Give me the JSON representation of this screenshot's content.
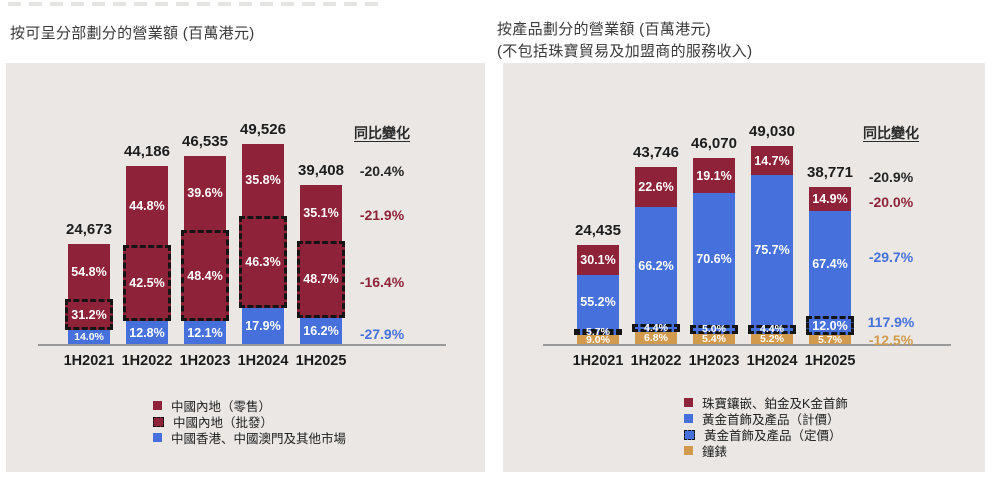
{
  "colors": {
    "red": "#8E2238",
    "blue": "#4671DC",
    "gold": "#D29A4C",
    "black": "#262626",
    "panel_bg": "#EAE7E4",
    "axis": "#9A9A9A"
  },
  "chart_data": [
    {
      "type": "bar",
      "stacked": true,
      "title_lines": [
        "按可呈分部劃分的營業額 (百萬港元)"
      ],
      "unit": "百萬港元",
      "yoy_header": "同比變化",
      "categories": [
        "1H2021",
        "1H2022",
        "1H2023",
        "1H2024",
        "1H2025"
      ],
      "totals_display": [
        "24,673",
        "44,186",
        "46,535",
        "49,526",
        "39,408"
      ],
      "series": [
        {
          "name": "中國內地（零售）",
          "style": "solid-red",
          "values": [
            54.8,
            44.8,
            39.6,
            35.8,
            35.1
          ]
        },
        {
          "name": "中國內地（批發）",
          "style": "dashed-red",
          "values": [
            31.2,
            42.5,
            48.4,
            46.3,
            48.7
          ]
        },
        {
          "name": "中國香港、中國澳門及其他市場",
          "style": "solid-blue",
          "values": [
            14.0,
            12.8,
            12.1,
            17.9,
            16.2
          ]
        }
      ],
      "yoy": [
        {
          "label": "-20.4%",
          "color": "black"
        },
        {
          "label": "-21.9%",
          "color": "red"
        },
        {
          "label": "-16.4%",
          "color": "red"
        },
        {
          "label": "-27.9%",
          "color": "blue"
        }
      ]
    },
    {
      "type": "bar",
      "stacked": true,
      "title_lines": [
        "按產品劃分的營業額 (百萬港元)",
        "(不包括珠寶貿易及加盟商的服務收入)"
      ],
      "unit": "百萬港元",
      "yoy_header": "同比變化",
      "categories": [
        "1H2021",
        "1H2022",
        "1H2023",
        "1H2024",
        "1H2025"
      ],
      "totals_display": [
        "24,435",
        "43,746",
        "46,070",
        "49,030",
        "38,771"
      ],
      "series": [
        {
          "name": "珠寶鑲嵌、鉑金及K金首飾",
          "style": "solid-red",
          "values": [
            30.1,
            22.6,
            19.1,
            14.7,
            14.9
          ]
        },
        {
          "name": "黃金首飾及產品（計價）",
          "style": "solid-blue",
          "values": [
            55.2,
            66.2,
            70.6,
            75.7,
            67.4
          ]
        },
        {
          "name": "黃金首飾及產品（定價）",
          "style": "dashed-blue",
          "values": [
            5.7,
            4.4,
            5.0,
            4.4,
            12.0
          ]
        },
        {
          "name": "鐘錶",
          "style": "solid-gold",
          "values": [
            9.0,
            6.8,
            5.4,
            5.2,
            5.7
          ]
        }
      ],
      "yoy": [
        {
          "label": "-20.9%",
          "color": "black"
        },
        {
          "label": "-20.0%",
          "color": "red"
        },
        {
          "label": "-29.7%",
          "color": "blue"
        },
        {
          "label": "117.9%",
          "color": "blue"
        },
        {
          "label": "-12.5%",
          "color": "gold"
        }
      ]
    }
  ]
}
